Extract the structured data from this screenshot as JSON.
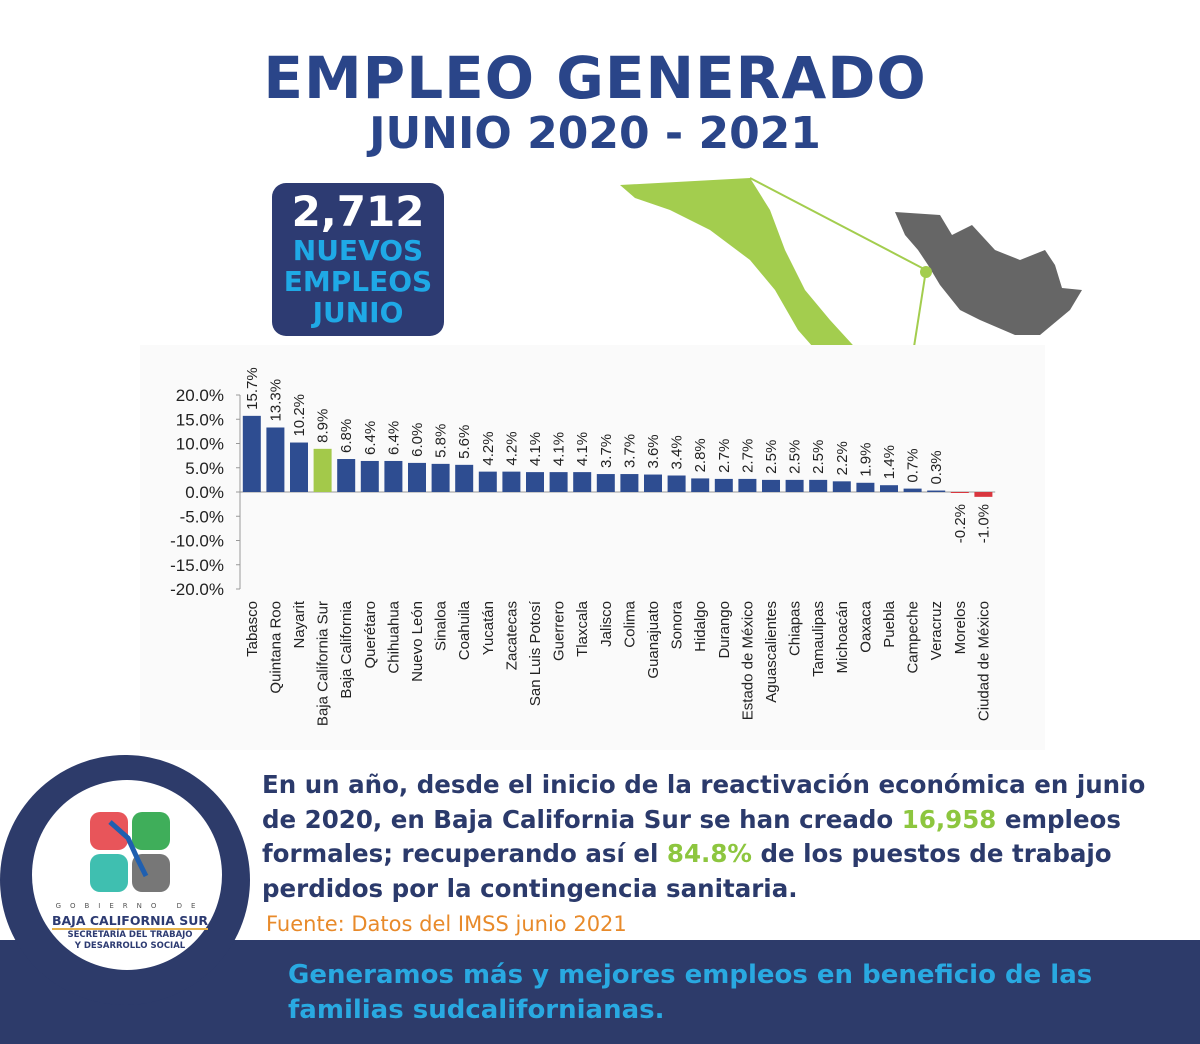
{
  "header": {
    "title": "EMPLEO GENERADO",
    "subtitle": "JUNIO 2020 - 2021"
  },
  "highlight": {
    "number": "2,712",
    "line1": "NUEVOS",
    "line2": "EMPLEOS",
    "line3": "JUNIO"
  },
  "colors": {
    "navy": "#2d3b72",
    "bar": "#2e4d91",
    "highlight_bar": "#a3c94a",
    "negative_bar": "#d9363e",
    "green": "#8dc63f",
    "cyan": "#1fa9e6",
    "orange": "#e88a2a",
    "map_green": "#a3cd4e",
    "map_gray": "#666666"
  },
  "chart_data": {
    "type": "bar",
    "ylim": [
      -20,
      20
    ],
    "yticks": [
      "20.0%",
      "15.0%",
      "10.0%",
      "5.0%",
      "0.0%",
      "-5.0%",
      "-10.0%",
      "-15.0%",
      "-20.0%"
    ],
    "grid": false,
    "categories": [
      "Tabasco",
      "Quintana Roo",
      "Nayarit",
      "Baja California Sur",
      "Baja California",
      "Querétaro",
      "Chihuahua",
      "Nuevo León",
      "Sinaloa",
      "Coahuila",
      "Yucatán",
      "Zacatecas",
      "San Luis Potosí",
      "Guerrero",
      "Tlaxcala",
      "Jalisco",
      "Colima",
      "Guanajuato",
      "Sonora",
      "Hidalgo",
      "Durango",
      "Estado de México",
      "Aguascalientes",
      "Chiapas",
      "Tamaulipas",
      "Michoacán",
      "Oaxaca",
      "Puebla",
      "Campeche",
      "Veracruz",
      "Morelos",
      "Ciudad de México"
    ],
    "values": [
      15.7,
      13.3,
      10.2,
      8.9,
      6.8,
      6.4,
      6.4,
      6.0,
      5.8,
      5.6,
      4.2,
      4.2,
      4.1,
      4.1,
      4.1,
      3.7,
      3.7,
      3.6,
      3.4,
      2.8,
      2.7,
      2.7,
      2.5,
      2.5,
      2.5,
      2.2,
      1.9,
      1.4,
      0.7,
      0.3,
      -0.2,
      -1.0
    ],
    "labels": [
      "15.7%",
      "13.3%",
      "10.2%",
      "8.9%",
      "6.8%",
      "6.4%",
      "6.4%",
      "6.0%",
      "5.8%",
      "5.6%",
      "4.2%",
      "4.2%",
      "4.1%",
      "4.1%",
      "4.1%",
      "3.7%",
      "3.7%",
      "3.6%",
      "3.4%",
      "2.8%",
      "2.7%",
      "2.7%",
      "2.5%",
      "2.5%",
      "2.5%",
      "2.2%",
      "1.9%",
      "1.4%",
      "0.7%",
      "0.3%",
      "-0.2%",
      "-1.0%"
    ],
    "highlight": "Baja California Sur"
  },
  "body": {
    "p1": "En un año, desde el inicio de la reactivación económica en junio de 2020,  en Baja California Sur se han creado ",
    "n1": "16,958",
    "p2": " empleos formales; recuperando así el ",
    "n2": "84.8%",
    "p3": "  de los puestos de trabajo perdidos por la contingencia sanitaria.",
    "source": "Fuente: Datos del IMSS junio 2021"
  },
  "logo": {
    "gobierno": "GOBIERNO DE",
    "state": "BAJA CALIFORNIA SUR",
    "sec1": "SECRETARÍA DEL TRABAJO",
    "sec2": "Y DESARROLLO SOCIAL"
  },
  "footer": {
    "line1": "Generamos más y mejores empleos en beneficio de las",
    "line2": "familias sudcalifornianas."
  }
}
